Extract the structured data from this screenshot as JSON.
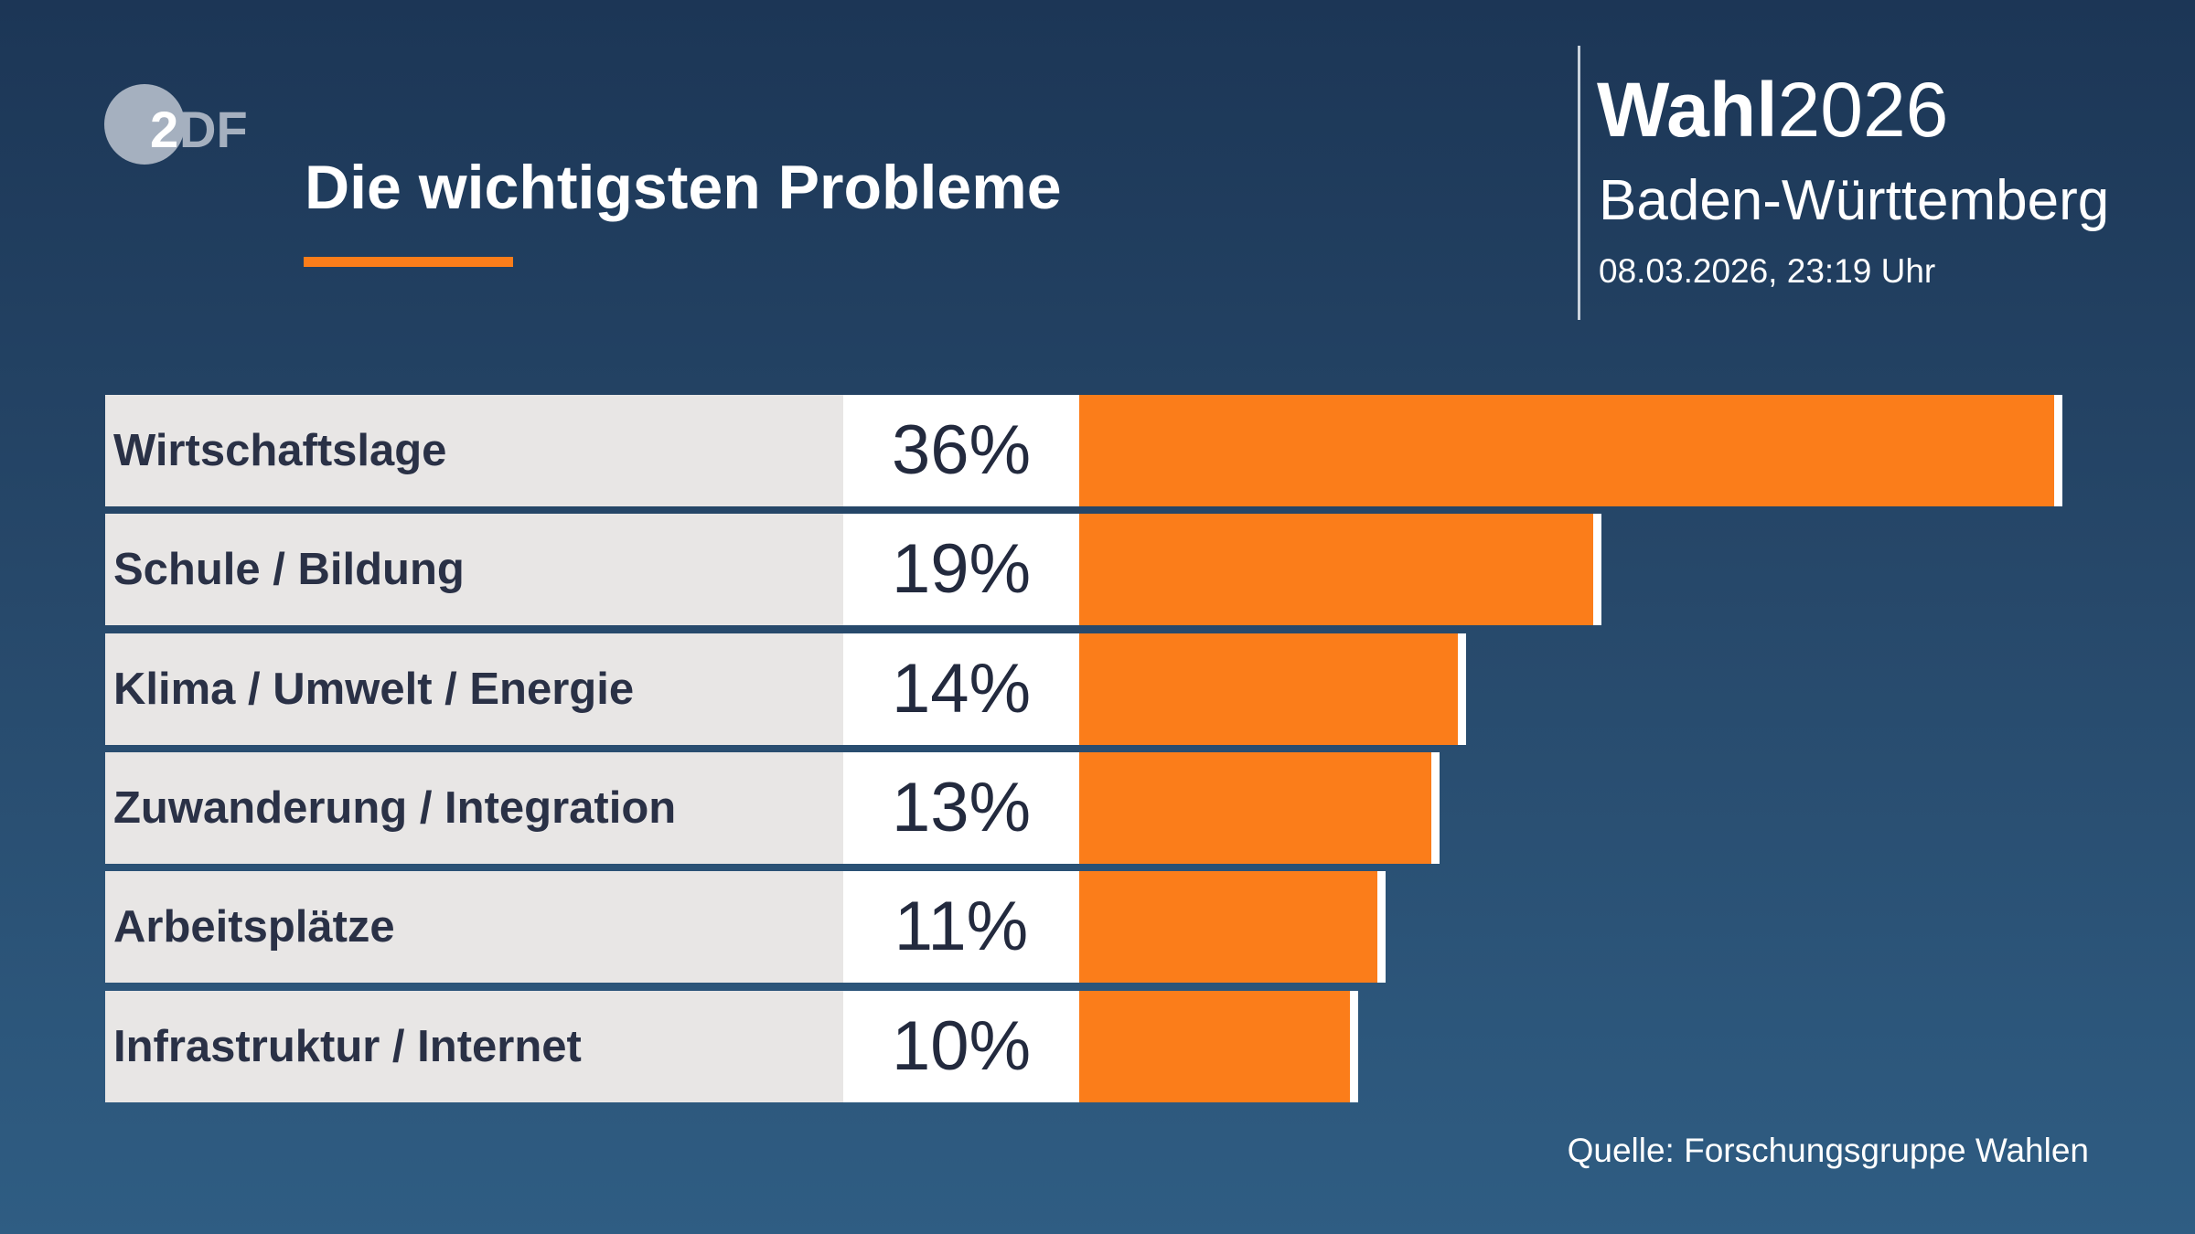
{
  "logo": {
    "text": "2DF",
    "name": "ZDF"
  },
  "title": "Die wichtigsten Probleme",
  "header": {
    "wahl_bold": "Wahl",
    "wahl_year": "2026",
    "region": "Baden-Württemberg",
    "date": "08.03.2026, 23:19 Uhr"
  },
  "colors": {
    "bar": "#fb7d1a",
    "label_bg": "#e8e6e5",
    "value_bg": "#ffffff",
    "background_top": "#1c3656",
    "background_bottom": "#2f5d83"
  },
  "chart_data": {
    "type": "bar",
    "orientation": "horizontal",
    "title": "Die wichtigsten Probleme",
    "categories": [
      "Wirtschaftslage",
      "Schule / Bildung",
      "Klima / Umwelt / Energie",
      "Zuwanderung / Integration",
      "Arbeitsplätze",
      "Infrastruktur / Internet"
    ],
    "values": [
      36,
      19,
      14,
      13,
      11,
      10
    ],
    "labels": [
      "36%",
      "19%",
      "14%",
      "13%",
      "11%",
      "10%"
    ],
    "unit": "%",
    "grid": false
  },
  "source": "Quelle: Forschungsgruppe Wahlen"
}
